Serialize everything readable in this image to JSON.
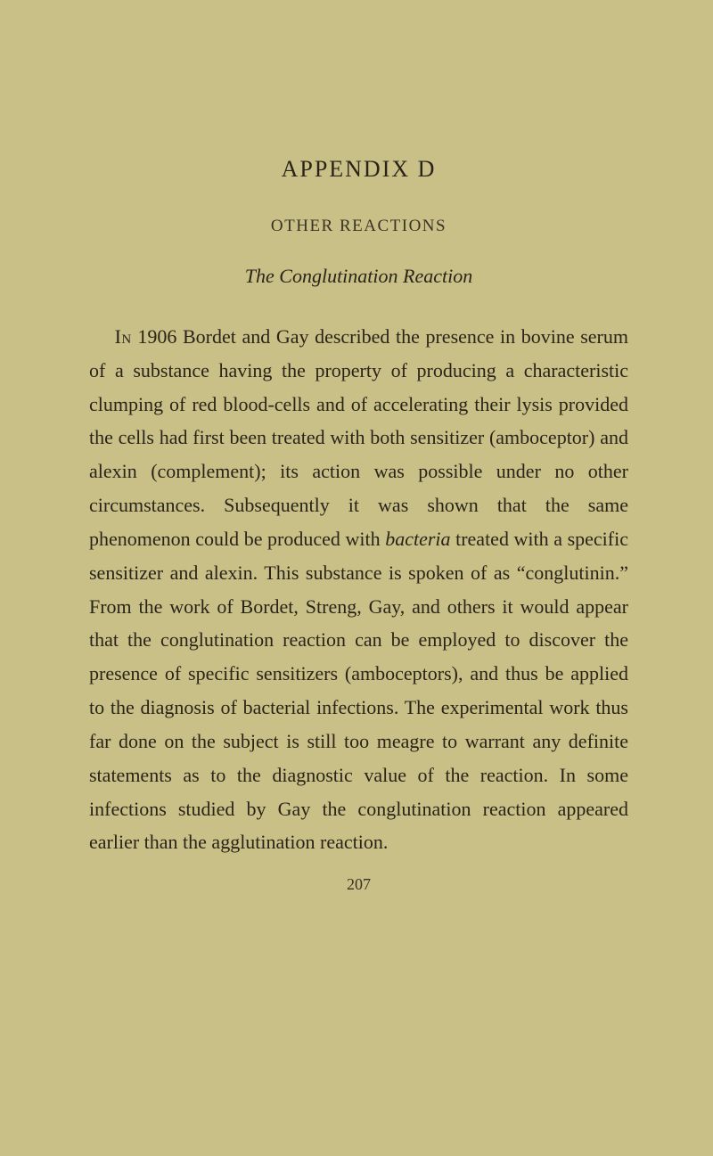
{
  "page": {
    "appendix_title": "APPENDIX D",
    "section_label": "OTHER REACTIONS",
    "subtitle": "The Conglutination Reaction",
    "body_html": "<span class=\"smallcaps\">In</span> 1906 Bordet and Gay described the presence in bovine serum of a substance having the property of producing a characteristic clumping of red blood-cells and of accelerating their lysis provided the cells had first been treated with both sensitizer (amboceptor) and alexin (complement); its action was possible under no other circumstances. Subsequently it was shown that the same phenomenon could be produced with <em>bacteria</em> treated with a specific sensitizer and alexin. This substance is spoken of as “conglutinin.” From the work of Bordet, Streng, Gay, and others it would appear that the conglutination reaction can be employed to discover the presence of specific sensitizers (amboceptors), and thus be applied to the diagnosis of bacterial infections. The experimental work thus far done on the subject is still too meagre to warrant any definite statements as to the diagnostic value of the reaction. In some infections studied by Gay the conglutination reaction appeared earlier than the agglutination reaction.",
    "page_number": "207"
  },
  "style": {
    "background_color": "#c9c088",
    "text_color": "#2a2418",
    "secondary_text_color": "#3a3324",
    "title_fontsize": 26,
    "section_label_fontsize": 19,
    "subtitle_fontsize": 22,
    "body_fontsize": 22,
    "page_number_fontsize": 18,
    "line_height": 1.72,
    "font_family": "Georgia, 'Times New Roman', serif"
  }
}
